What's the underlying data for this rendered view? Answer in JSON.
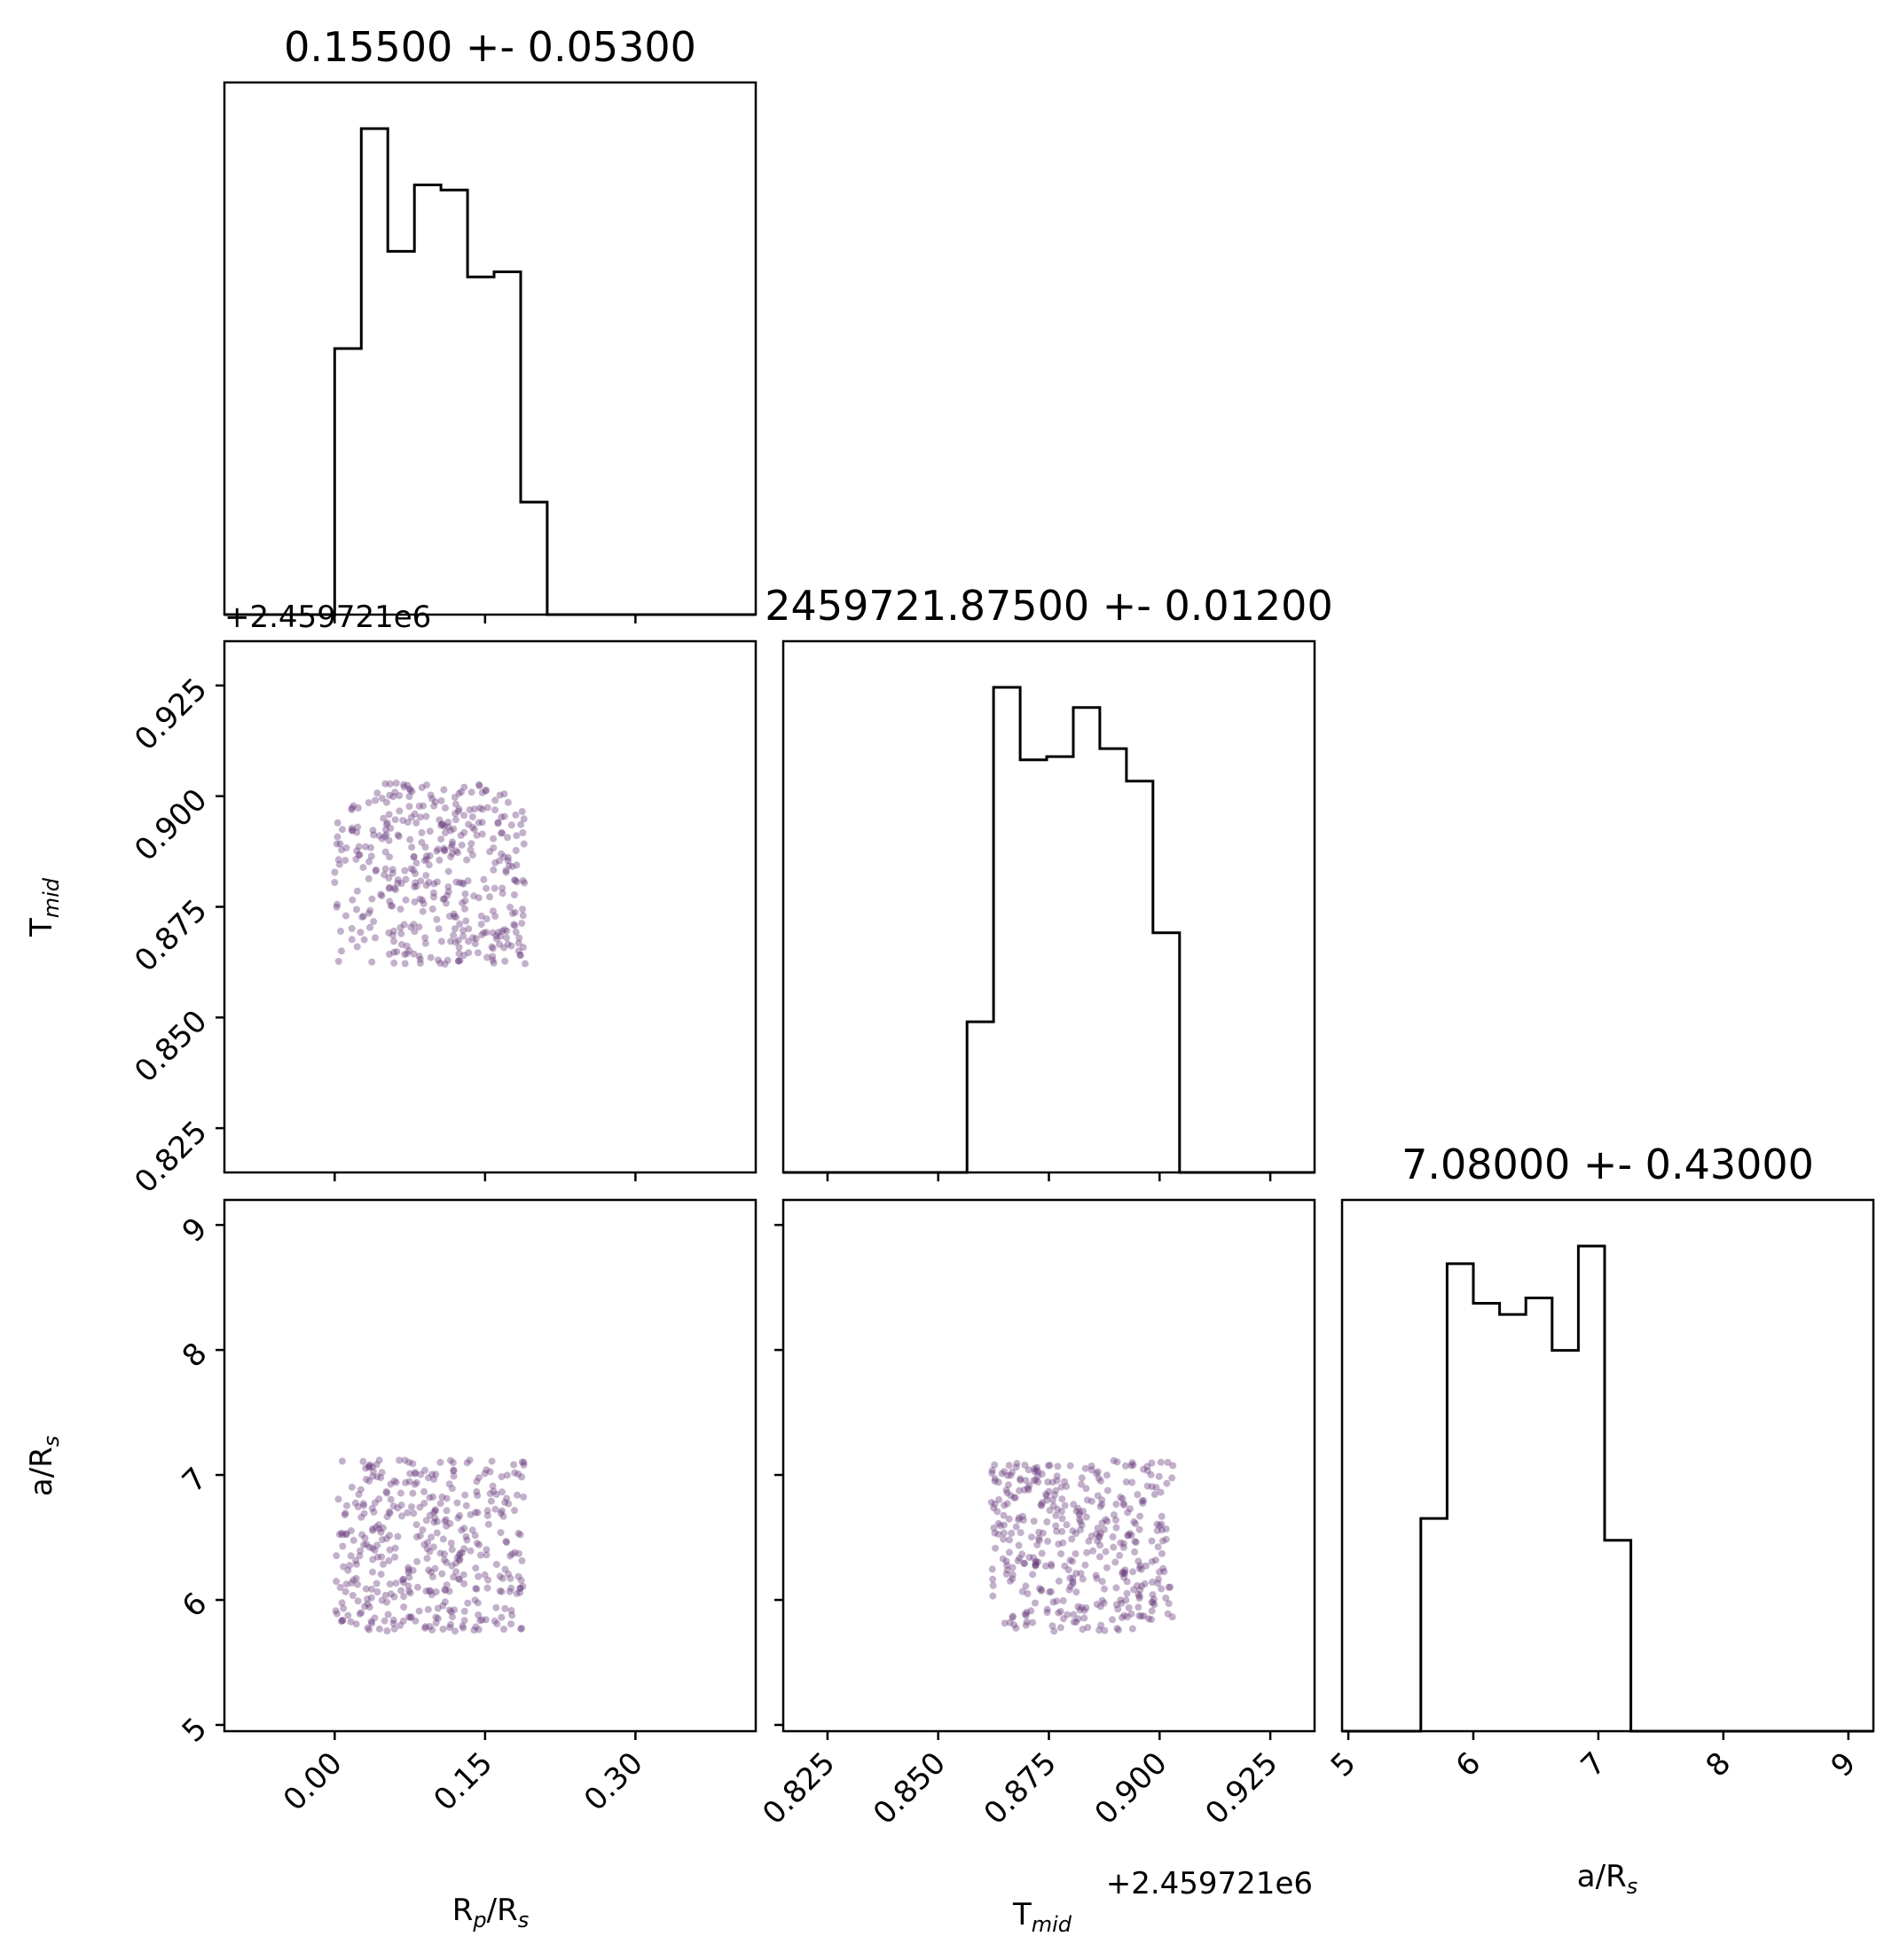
{
  "chart_data": {
    "type": "scatter",
    "layout": "corner",
    "parameters": [
      {
        "key": "rp",
        "label_main": "R",
        "label_sub1": "p",
        "label_mid": "/R",
        "label_sub2": "s",
        "range": [
          -0.11,
          0.42
        ],
        "ticks": [
          0.0,
          0.15,
          0.3
        ],
        "tick_labels": [
          "0.00",
          "0.15",
          "0.30"
        ],
        "title": "0.15500 +- 0.05300",
        "hist": {
          "edges": [
            -0.11,
            0.0,
            0.0265,
            0.053,
            0.0795,
            0.106,
            0.1325,
            0.159,
            0.1855,
            0.212,
            0.42
          ],
          "counts": [
            0,
            0.52,
            0.95,
            0.71,
            0.84,
            0.83,
            0.66,
            0.67,
            0.22,
            0
          ]
        },
        "offset": ""
      },
      {
        "key": "tmid",
        "label_main": "T",
        "label_sub1": "mid",
        "label_mid": "",
        "label_sub2": "",
        "range": [
          0.815,
          0.935
        ],
        "ticks": [
          0.825,
          0.85,
          0.875,
          0.9,
          0.925
        ],
        "tick_labels": [
          "0.825",
          "0.850",
          "0.875",
          "0.900",
          "0.925"
        ],
        "title": "2459721.87500 +- 0.01200",
        "hist": {
          "edges": [
            0.815,
            0.8565,
            0.8625,
            0.8685,
            0.8745,
            0.8805,
            0.8865,
            0.8925,
            0.8985,
            0.9045,
            0.935
          ],
          "counts": [
            0,
            0.283,
            0.911,
            0.775,
            0.781,
            0.873,
            0.796,
            0.735,
            0.45,
            0
          ]
        },
        "offset": "+2.459721e6"
      },
      {
        "key": "ars",
        "label_main": "a/R",
        "label_sub1": "s",
        "label_mid": "",
        "label_sub2": "",
        "range": [
          4.95,
          9.2
        ],
        "ticks": [
          5,
          6,
          7,
          8,
          9
        ],
        "tick_labels": [
          "5",
          "6",
          "7",
          "8",
          "9"
        ],
        "title": "7.08000 +- 0.43000",
        "hist": {
          "edges": [
            4.95,
            5.58,
            5.79,
            6.0,
            6.21,
            6.42,
            6.63,
            6.84,
            7.05,
            7.26,
            9.2
          ],
          "counts": [
            0,
            0.361,
            0.793,
            0.726,
            0.707,
            0.735,
            0.646,
            0.823,
            0.324,
            0
          ]
        },
        "offset": ""
      }
    ],
    "scatter_boxes": {
      "rp": [
        0.0,
        0.19
      ],
      "tmid": [
        0.862,
        0.903
      ],
      "ars": [
        5.75,
        7.12
      ]
    },
    "points_per_panel": 400
  }
}
